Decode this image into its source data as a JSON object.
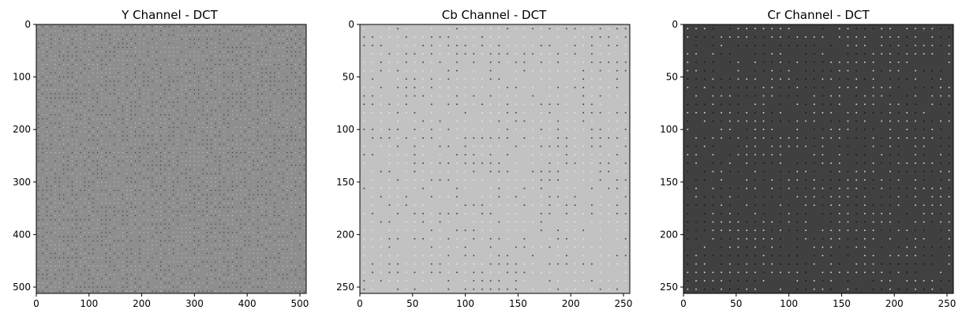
{
  "chart_data": [
    {
      "type": "heatmap",
      "title": "Y Channel - DCT",
      "xlim": [
        0,
        512
      ],
      "ylim": [
        512,
        0
      ],
      "x_ticks": [
        0,
        100,
        200,
        300,
        400,
        500
      ],
      "y_ticks": [
        0,
        100,
        200,
        300,
        400,
        500
      ],
      "block_size": 8,
      "background_color": "#8e8e8e",
      "dot_color_dark": "#2e2e2e",
      "dot_color_light": "#c8c8c8"
    },
    {
      "type": "heatmap",
      "title": "Cb Channel - DCT",
      "xlim": [
        0,
        256
      ],
      "ylim": [
        256,
        0
      ],
      "x_ticks": [
        0,
        50,
        100,
        150,
        200,
        250
      ],
      "y_ticks": [
        0,
        50,
        100,
        150,
        200,
        250
      ],
      "block_size": 8,
      "background_color": "#c2c2c2",
      "dot_color_dark": "#3a3a3a",
      "dot_color_light": "#e6e6e6"
    },
    {
      "type": "heatmap",
      "title": "Cr Channel - DCT",
      "xlim": [
        0,
        256
      ],
      "ylim": [
        256,
        0
      ],
      "x_ticks": [
        0,
        50,
        100,
        150,
        200,
        250
      ],
      "y_ticks": [
        0,
        50,
        100,
        150,
        200,
        250
      ],
      "block_size": 8,
      "background_color": "#404040",
      "dot_color_dark": "#151515",
      "dot_color_light": "#e0e0e0"
    }
  ]
}
